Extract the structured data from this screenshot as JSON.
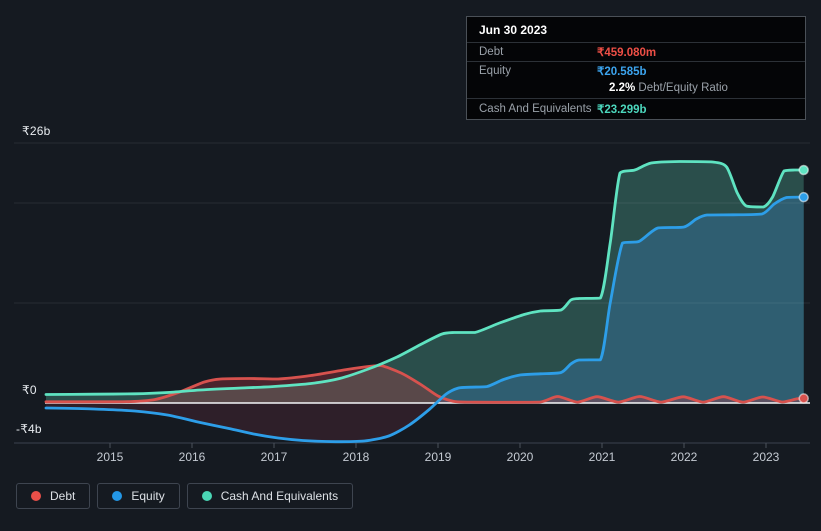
{
  "tooltip": {
    "date": "Jun 30 2023",
    "rows": [
      {
        "label": "Debt",
        "value": "₹459.080m"
      },
      {
        "label": "Equity",
        "value": "₹20.585b"
      },
      {
        "label": "Cash And Equivalents",
        "value": "₹23.299b"
      }
    ],
    "ratio": {
      "value": "2.2%",
      "label": "Debt/Equity Ratio"
    }
  },
  "legend": {
    "items": [
      {
        "label": "Debt",
        "color": "#e84f49"
      },
      {
        "label": "Equity",
        "color": "#2397e6"
      },
      {
        "label": "Cash And Equivalents",
        "color": "#4ad6b5"
      }
    ]
  },
  "axes": {
    "y_labels": [
      {
        "value": 26,
        "label": "₹26b"
      },
      {
        "value": 0,
        "label": "₹0"
      },
      {
        "value": -4,
        "label": "-₹4b"
      }
    ],
    "x_ticks": [
      2015,
      2016,
      2017,
      2018,
      2019,
      2020,
      2021,
      2022,
      2023
    ]
  },
  "chart_data": {
    "type": "area",
    "x_unit": "year (decimal)",
    "y_unit": "INR billions",
    "x_range": [
      2014.22,
      2023.46
    ],
    "ylim": [
      -4,
      26
    ],
    "y_gridlines": [
      26,
      20,
      10
    ],
    "zero_line": 0,
    "legend_position": "bottom-left",
    "series": [
      {
        "name": "Cash And Equivalents",
        "color": "#5fe3c1",
        "fill": "rgba(63,130,117,0.5)",
        "neg_fill": "rgba(71,36,49,0.5)",
        "last_value_label": "₹23.299b",
        "points": [
          [
            2014.22,
            0.85
          ],
          [
            2014.8,
            0.88
          ],
          [
            2015.3,
            0.92
          ],
          [
            2015.7,
            1.05
          ],
          [
            2016.1,
            1.3
          ],
          [
            2016.6,
            1.5
          ],
          [
            2017.0,
            1.65
          ],
          [
            2017.45,
            1.95
          ],
          [
            2017.8,
            2.45
          ],
          [
            2018.15,
            3.4
          ],
          [
            2018.5,
            4.6
          ],
          [
            2018.8,
            5.9
          ],
          [
            2019.05,
            6.9
          ],
          [
            2019.2,
            7.05
          ],
          [
            2019.45,
            7.05
          ],
          [
            2019.75,
            8.0
          ],
          [
            2020.05,
            8.85
          ],
          [
            2020.25,
            9.2
          ],
          [
            2020.5,
            9.3
          ],
          [
            2020.62,
            10.3
          ],
          [
            2020.72,
            10.45
          ],
          [
            2020.98,
            10.5
          ],
          [
            2021.1,
            16.0
          ],
          [
            2021.22,
            23.0
          ],
          [
            2021.4,
            23.3
          ],
          [
            2021.6,
            24.0
          ],
          [
            2021.95,
            24.15
          ],
          [
            2022.35,
            24.1
          ],
          [
            2022.52,
            23.6
          ],
          [
            2022.65,
            21.0
          ],
          [
            2022.76,
            19.7
          ],
          [
            2022.97,
            19.6
          ],
          [
            2023.08,
            20.6
          ],
          [
            2023.22,
            23.2
          ],
          [
            2023.35,
            23.3
          ],
          [
            2023.46,
            23.3
          ]
        ]
      },
      {
        "name": "Equity",
        "color": "#2d9ee8",
        "fill": "rgba(49,99,122,0.8)",
        "neg_fill": "rgba(71,36,49,0.5)",
        "last_value_label": "₹20.585b",
        "points": [
          [
            2014.22,
            -0.5
          ],
          [
            2014.8,
            -0.6
          ],
          [
            2015.3,
            -0.8
          ],
          [
            2015.7,
            -1.2
          ],
          [
            2016.1,
            -1.95
          ],
          [
            2016.45,
            -2.55
          ],
          [
            2016.75,
            -3.1
          ],
          [
            2017.05,
            -3.5
          ],
          [
            2017.35,
            -3.75
          ],
          [
            2017.75,
            -3.87
          ],
          [
            2018.1,
            -3.8
          ],
          [
            2018.4,
            -3.3
          ],
          [
            2018.65,
            -2.2
          ],
          [
            2018.9,
            -0.6
          ],
          [
            2019.1,
            0.9
          ],
          [
            2019.25,
            1.5
          ],
          [
            2019.4,
            1.58
          ],
          [
            2019.6,
            1.65
          ],
          [
            2019.8,
            2.35
          ],
          [
            2020.0,
            2.8
          ],
          [
            2020.25,
            2.92
          ],
          [
            2020.5,
            3.05
          ],
          [
            2020.62,
            3.9
          ],
          [
            2020.72,
            4.3
          ],
          [
            2020.98,
            4.32
          ],
          [
            2021.1,
            10.0
          ],
          [
            2021.25,
            16.0
          ],
          [
            2021.45,
            16.15
          ],
          [
            2021.68,
            17.5
          ],
          [
            2022.0,
            17.6
          ],
          [
            2022.15,
            18.4
          ],
          [
            2022.28,
            18.8
          ],
          [
            2022.6,
            18.82
          ],
          [
            2022.95,
            18.9
          ],
          [
            2023.1,
            19.9
          ],
          [
            2023.25,
            20.55
          ],
          [
            2023.46,
            20.585
          ]
        ]
      },
      {
        "name": "Debt",
        "color": "#d7524e",
        "fill": "rgba(190,60,70,0.32)",
        "neg_fill": "rgba(71,36,49,0.5)",
        "last_value_label": "₹459.080m",
        "points": [
          [
            2014.22,
            0.12
          ],
          [
            2014.8,
            0.12
          ],
          [
            2015.25,
            0.14
          ],
          [
            2015.55,
            0.35
          ],
          [
            2015.85,
            1.1
          ],
          [
            2016.15,
            2.1
          ],
          [
            2016.35,
            2.4
          ],
          [
            2016.7,
            2.45
          ],
          [
            2017.05,
            2.4
          ],
          [
            2017.45,
            2.75
          ],
          [
            2017.85,
            3.3
          ],
          [
            2018.1,
            3.6
          ],
          [
            2018.3,
            3.75
          ],
          [
            2018.55,
            3.0
          ],
          [
            2018.8,
            1.8
          ],
          [
            2019.0,
            0.7
          ],
          [
            2019.2,
            0.15
          ],
          [
            2019.45,
            0.08
          ],
          [
            2019.9,
            0.07
          ],
          [
            2020.25,
            0.1
          ],
          [
            2020.46,
            0.65
          ],
          [
            2020.7,
            0.09
          ],
          [
            2020.94,
            0.63
          ],
          [
            2021.2,
            0.09
          ],
          [
            2021.46,
            0.65
          ],
          [
            2021.72,
            0.09
          ],
          [
            2021.99,
            0.62
          ],
          [
            2022.23,
            0.09
          ],
          [
            2022.48,
            0.63
          ],
          [
            2022.72,
            0.09
          ],
          [
            2022.96,
            0.6
          ],
          [
            2023.2,
            0.1
          ],
          [
            2023.38,
            0.42
          ],
          [
            2023.46,
            0.459
          ]
        ]
      }
    ]
  }
}
